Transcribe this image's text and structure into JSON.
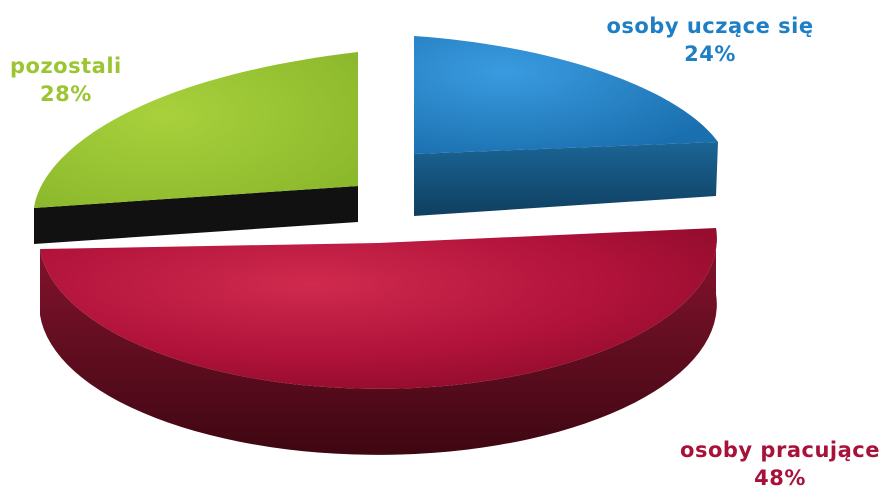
{
  "chart_data": {
    "type": "pie",
    "title": "",
    "slices": [
      {
        "label": "osoby uczące się",
        "value": 24,
        "value_label": "24%",
        "color": "#1f7fc4",
        "side_color": "#155a8a",
        "exploded": true
      },
      {
        "label": "osoby pracujące",
        "value": 48,
        "value_label": "48%",
        "color": "#b3123a",
        "side_color": "#5a0d1c",
        "exploded": false
      },
      {
        "label": "pozostali",
        "value": 28,
        "value_label": "28%",
        "color": "#9bc531",
        "side_color": "#111111",
        "exploded": true
      }
    ],
    "label_colors": {
      "osoby uczące się": "#1f7fc4",
      "osoby pracujące": "#a8123a",
      "pozostali": "#9bc531"
    },
    "style": "3d-exploded",
    "legend": "none"
  }
}
